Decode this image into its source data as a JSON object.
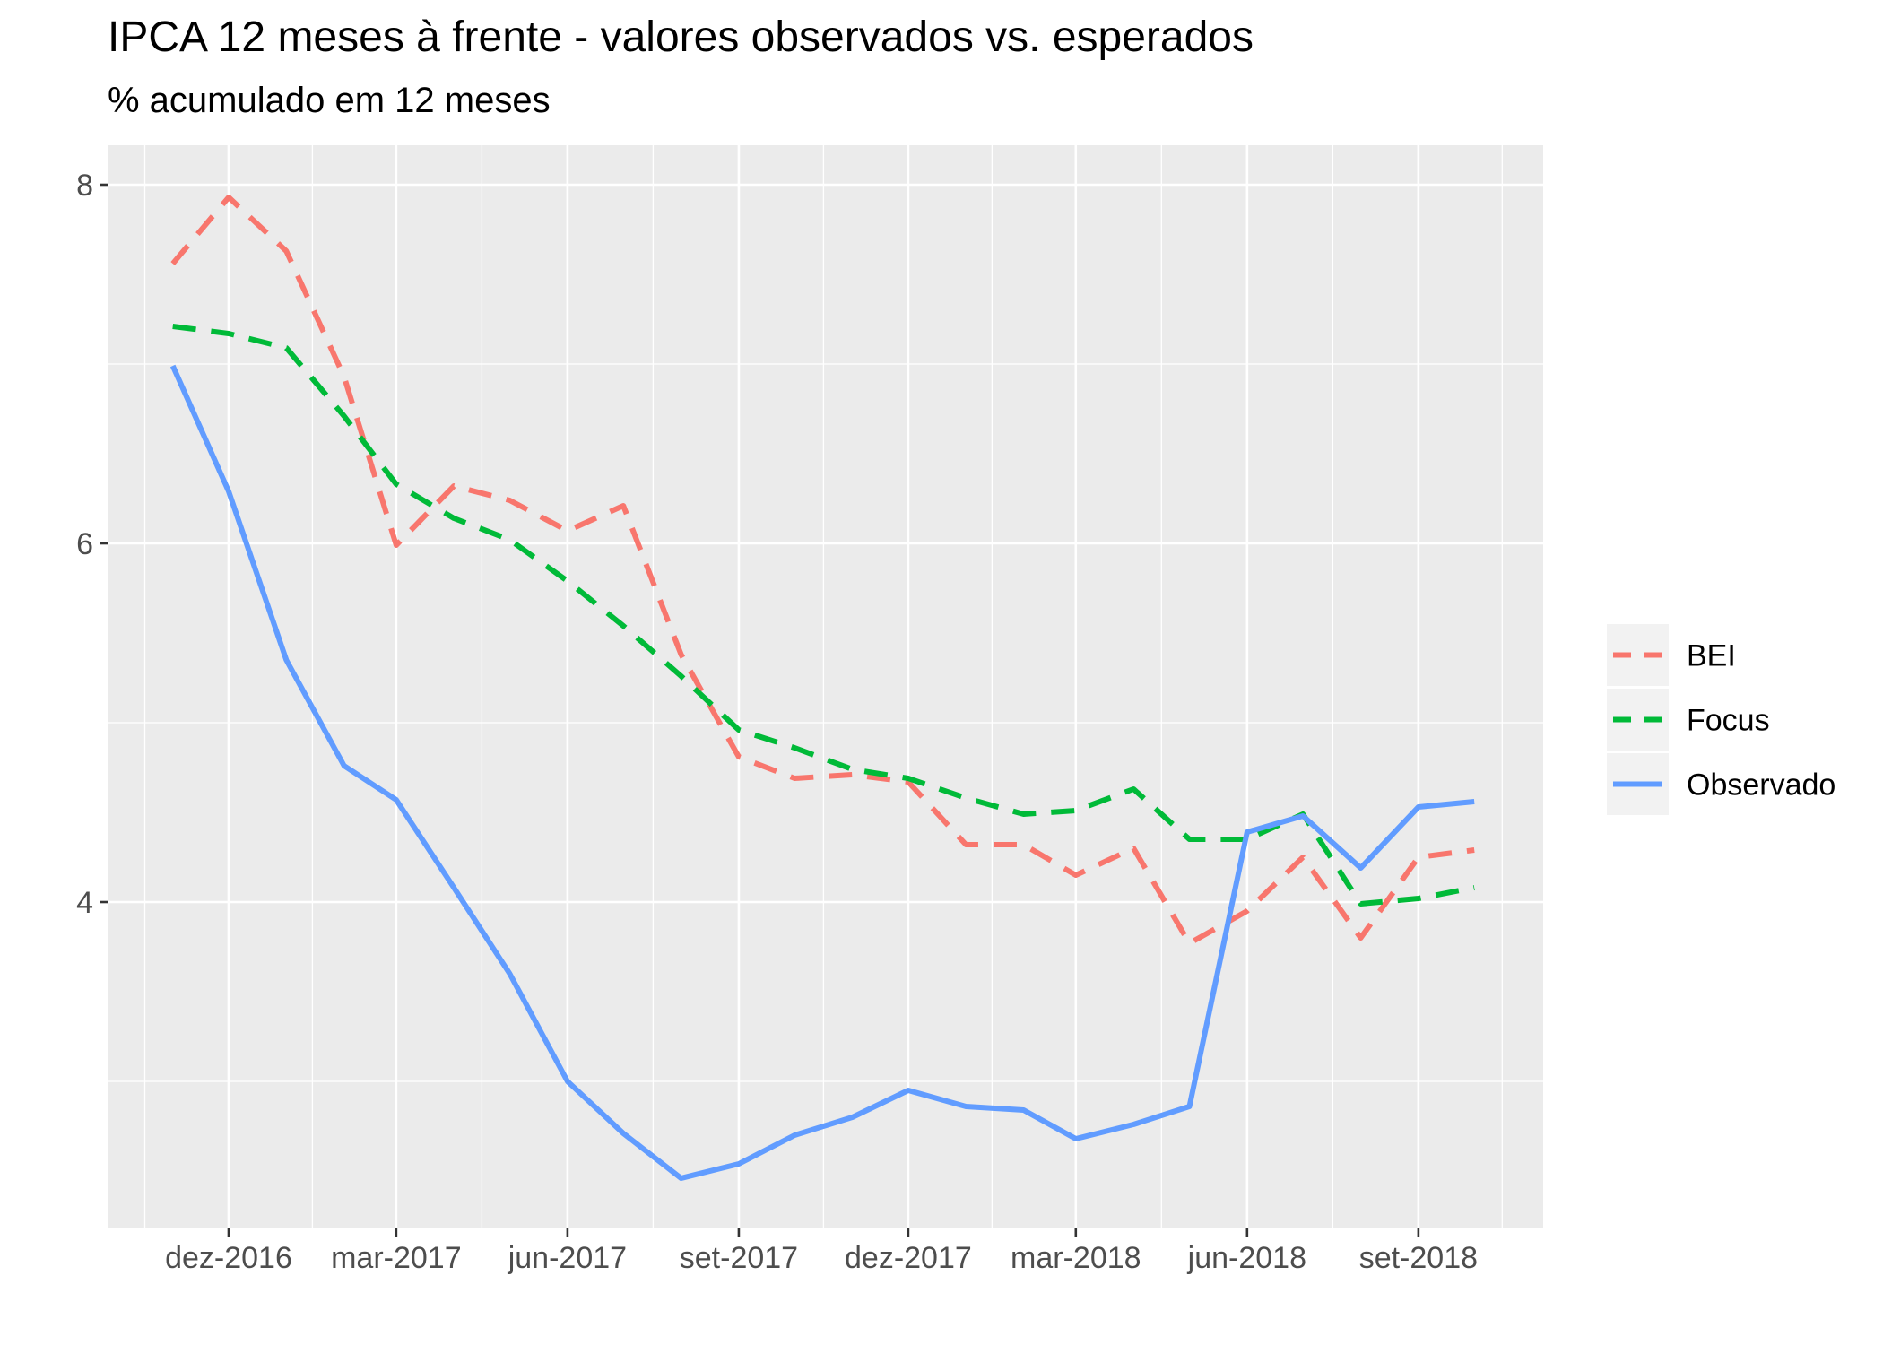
{
  "chart_data": {
    "type": "line",
    "title": "IPCA 12 meses à frente - valores observados vs. esperados",
    "subtitle": "% acumulado em 12 meses",
    "xlabel": "",
    "ylabel": "",
    "x": [
      "2016-11",
      "2016-12",
      "2017-01",
      "2017-02",
      "2017-03",
      "2017-04",
      "2017-05",
      "2017-06",
      "2017-07",
      "2017-08",
      "2017-09",
      "2017-10",
      "2017-11",
      "2017-12",
      "2018-01",
      "2018-02",
      "2018-03",
      "2018-04",
      "2018-05",
      "2018-06",
      "2018-07",
      "2018-08",
      "2018-09",
      "2018-10"
    ],
    "x_tick_labels": [
      "dez-2016",
      "mar-2017",
      "jun-2017",
      "set-2017",
      "dez-2017",
      "mar-2018",
      "jun-2018",
      "set-2018"
    ],
    "x_tick_dates": [
      "2016-12",
      "2017-03",
      "2017-06",
      "2017-09",
      "2017-12",
      "2018-03",
      "2018-06",
      "2018-09"
    ],
    "xlim": [
      "2016-10-11",
      "2018-11-21"
    ],
    "y_ticks": [
      4,
      6,
      8
    ],
    "ylim": [
      2.18,
      8.22
    ],
    "grid": true,
    "legend_position": "right",
    "series": [
      {
        "name": "BEI",
        "style": "dashed",
        "color": "#F8766D",
        "values": [
          7.56,
          7.93,
          7.63,
          6.93,
          5.99,
          6.32,
          6.24,
          6.07,
          6.21,
          5.38,
          4.81,
          4.69,
          4.71,
          4.67,
          4.32,
          4.32,
          4.15,
          4.3,
          3.77,
          3.95,
          4.25,
          3.8,
          4.25,
          4.29
        ]
      },
      {
        "name": "Focus",
        "style": "dashed",
        "color": "#00BA38",
        "values": [
          7.21,
          7.17,
          7.09,
          6.71,
          6.33,
          6.14,
          6.02,
          5.79,
          5.54,
          5.26,
          4.96,
          4.86,
          4.74,
          4.69,
          4.58,
          4.49,
          4.51,
          4.63,
          4.35,
          4.35,
          4.49,
          3.99,
          4.02,
          4.08
        ]
      },
      {
        "name": "Observado",
        "style": "solid",
        "color": "#619CFF",
        "values": [
          6.99,
          6.29,
          5.35,
          4.76,
          4.57,
          4.08,
          3.6,
          3.0,
          2.71,
          2.46,
          2.54,
          2.7,
          2.8,
          2.95,
          2.86,
          2.84,
          2.68,
          2.76,
          2.86,
          4.39,
          4.48,
          4.19,
          4.53,
          4.56
        ]
      }
    ]
  }
}
